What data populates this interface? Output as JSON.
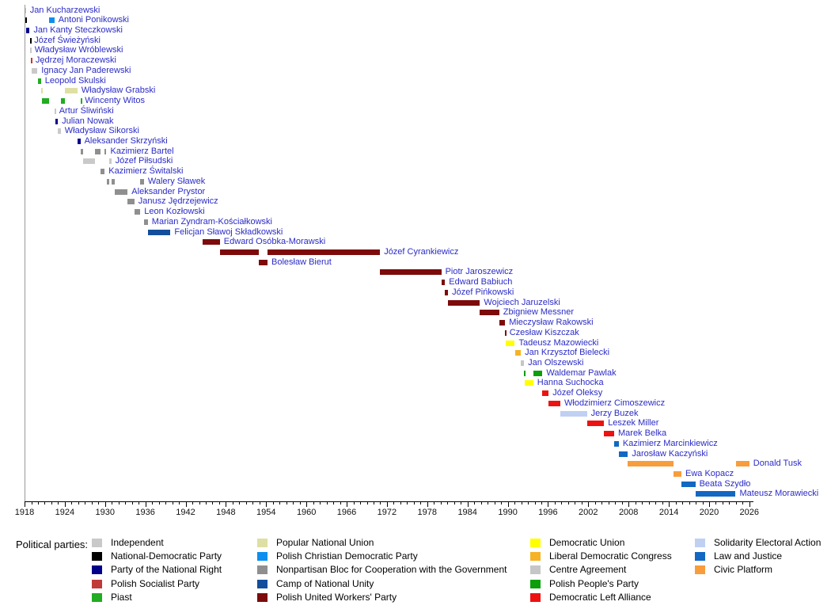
{
  "chart_data": {
    "type": "timeline",
    "title": "",
    "axis": {
      "start": 1918,
      "end": 2026,
      "major_tick_step": 6,
      "minor_tick_step": 1,
      "tick_labels": [
        1918,
        1924,
        1930,
        1936,
        1942,
        1948,
        1954,
        1960,
        1966,
        1972,
        1978,
        1984,
        1990,
        1996,
        2002,
        2008,
        2014,
        2020,
        2026
      ]
    },
    "parties": {
      "independent": {
        "label": "Independent",
        "color": "#C9C9C9"
      },
      "national_democratic": {
        "label": "National-Democratic Party",
        "color": "#000000"
      },
      "national_right": {
        "label": "Party of the National Right",
        "color": "#00008B"
      },
      "socialist": {
        "label": "Polish Socialist Party",
        "color": "#C03A3A"
      },
      "piast": {
        "label": "Piast",
        "color": "#22AC22"
      },
      "popular_national_union": {
        "label": "Popular National Union",
        "color": "#DEDFA3"
      },
      "christian_democratic": {
        "label": "Polish Christian Democratic Party",
        "color": "#0D8FEF"
      },
      "nonpartisan_bloc": {
        "label": "Nonpartisan Bloc for Cooperation with the Government",
        "color": "#8F8F8F"
      },
      "camp_national_unity": {
        "label": "Camp of National Unity",
        "color": "#134E9C"
      },
      "united_workers": {
        "label": "Polish United Workers' Party",
        "color": "#7D0B0B"
      },
      "democratic_union": {
        "label": "Democratic Union",
        "color": "#FFFF00"
      },
      "liberal_congress": {
        "label": "Liberal Democratic Congress",
        "color": "#F5B325"
      },
      "centre_agreement": {
        "label": "Centre Agreement",
        "color": "#C6C6C6"
      },
      "peoples_party": {
        "label": "Polish People's Party",
        "color": "#0C9E0C"
      },
      "left_alliance": {
        "label": "Democratic Left Alliance",
        "color": "#EE1111"
      },
      "solidarity": {
        "label": "Solidarity Electoral Action",
        "color": "#BFD0F2"
      },
      "law_justice": {
        "label": "Law and Justice",
        "color": "#1268C2"
      },
      "civic_platform": {
        "label": "Civic Platform",
        "color": "#F89D3C"
      }
    },
    "prime_ministers": [
      {
        "name": "Jan Kucharzewski",
        "party": "independent",
        "terms": [
          [
            1918.0,
            1918.2
          ]
        ]
      },
      {
        "name": "Antoni Ponikowski",
        "party": "christian_democratic",
        "terms": [
          [
            1918.1,
            1918.3,
            "national_democratic"
          ],
          [
            1921.7,
            1922.45
          ]
        ]
      },
      {
        "name": "Jan Kanty Steczkowski",
        "party": "national_right",
        "terms": [
          [
            1918.25,
            1918.75
          ]
        ]
      },
      {
        "name": "Józef Świeżyński",
        "party": "national_democratic",
        "terms": [
          [
            1918.78,
            1918.85
          ]
        ]
      },
      {
        "name": "Władysław Wróblewski",
        "party": "independent",
        "terms": [
          [
            1918.85,
            1918.92
          ]
        ]
      },
      {
        "name": "Jędrzej Moraczewski",
        "party": "socialist",
        "terms": [
          [
            1918.88,
            1919.05
          ]
        ]
      },
      {
        "name": "Ignacy Jan Paderewski",
        "party": "independent",
        "terms": [
          [
            1919.05,
            1919.92
          ]
        ]
      },
      {
        "name": "Leopold Skulski",
        "party": "piast",
        "terms": [
          [
            1919.95,
            1920.45
          ]
        ]
      },
      {
        "name": "Władysław Grabski",
        "party": "popular_national_union",
        "terms": [
          [
            1920.48,
            1920.58
          ],
          [
            1923.97,
            1925.88
          ]
        ]
      },
      {
        "name": "Wincenty Witos",
        "party": "piast",
        "terms": [
          [
            1920.58,
            1921.7
          ],
          [
            1923.4,
            1923.97
          ],
          [
            1926.33,
            1926.4
          ]
        ]
      },
      {
        "name": "Artur Śliwiński",
        "party": "independent",
        "terms": [
          [
            1922.5,
            1922.56
          ]
        ]
      },
      {
        "name": "Julian Nowak",
        "party": "national_right",
        "terms": [
          [
            1922.58,
            1922.97
          ]
        ]
      },
      {
        "name": "Władysław Sikorski",
        "party": "independent",
        "terms": [
          [
            1922.97,
            1923.4
          ]
        ]
      },
      {
        "name": "Aleksander Skrzyński",
        "party": "national_right",
        "terms": [
          [
            1925.88,
            1926.33
          ]
        ]
      },
      {
        "name": "Kazimierz Bartel",
        "party": "nonpartisan_bloc",
        "terms": [
          [
            1926.37,
            1926.73
          ],
          [
            1928.5,
            1929.3
          ],
          [
            1929.95,
            1930.2
          ]
        ]
      },
      {
        "name": "Józef Piłsudski",
        "party": "independent",
        "terms": [
          [
            1926.75,
            1928.5
          ],
          [
            1930.65,
            1930.92
          ]
        ]
      },
      {
        "name": "Kazimierz Świtalski",
        "party": "nonpartisan_bloc",
        "terms": [
          [
            1929.3,
            1929.95
          ]
        ]
      },
      {
        "name": "Walery Sławek",
        "party": "nonpartisan_bloc",
        "terms": [
          [
            1930.2,
            1930.62
          ],
          [
            1930.92,
            1931.4
          ],
          [
            1935.25,
            1935.8
          ]
        ]
      },
      {
        "name": "Aleksander Prystor",
        "party": "nonpartisan_bloc",
        "terms": [
          [
            1931.4,
            1933.37
          ]
        ]
      },
      {
        "name": "Janusz Jędrzejewicz",
        "party": "nonpartisan_bloc",
        "terms": [
          [
            1933.37,
            1934.37
          ]
        ]
      },
      {
        "name": "Leon Kozłowski",
        "party": "nonpartisan_bloc",
        "terms": [
          [
            1934.37,
            1935.25
          ]
        ]
      },
      {
        "name": "Marian Zyndram-Kościałkowski",
        "party": "nonpartisan_bloc",
        "terms": [
          [
            1935.8,
            1936.37
          ]
        ]
      },
      {
        "name": "Felicjan Sławoj Składkowski",
        "party": "camp_national_unity",
        "terms": [
          [
            1936.37,
            1939.75
          ]
        ]
      },
      {
        "name": "Edward Osóbka-Morawski",
        "party": "united_workers",
        "terms": [
          [
            1944.5,
            1947.1
          ]
        ]
      },
      {
        "name": "Józef Cyrankiewicz",
        "party": "united_workers",
        "terms": [
          [
            1947.1,
            1952.85
          ],
          [
            1954.2,
            1970.97
          ]
        ]
      },
      {
        "name": "Bolesław Bierut",
        "party": "united_workers",
        "terms": [
          [
            1952.85,
            1954.2
          ]
        ]
      },
      {
        "name": "Piotr Jaroszewicz",
        "party": "united_workers",
        "terms": [
          [
            1970.97,
            1980.1
          ]
        ]
      },
      {
        "name": "Edward Babiuch",
        "party": "united_workers",
        "terms": [
          [
            1980.1,
            1980.65
          ]
        ]
      },
      {
        "name": "Józef Pińkowski",
        "party": "united_workers",
        "terms": [
          [
            1980.65,
            1981.1
          ]
        ]
      },
      {
        "name": "Wojciech Jaruzelski",
        "party": "united_workers",
        "terms": [
          [
            1981.1,
            1985.85
          ]
        ]
      },
      {
        "name": "Zbigniew Messner",
        "party": "united_workers",
        "terms": [
          [
            1985.85,
            1988.73
          ]
        ]
      },
      {
        "name": "Mieczysław Rakowski",
        "party": "united_workers",
        "terms": [
          [
            1988.73,
            1989.6
          ]
        ]
      },
      {
        "name": "Czesław Kiszczak",
        "party": "united_workers",
        "terms": [
          [
            1989.6,
            1989.66
          ]
        ]
      },
      {
        "name": "Tadeusz Mazowiecki",
        "party": "democratic_union",
        "terms": [
          [
            1989.66,
            1991.05
          ]
        ]
      },
      {
        "name": "Jan Krzysztof Bielecki",
        "party": "liberal_congress",
        "terms": [
          [
            1991.05,
            1991.95
          ]
        ]
      },
      {
        "name": "Jan Olszewski",
        "party": "centre_agreement",
        "terms": [
          [
            1991.95,
            1992.42
          ]
        ]
      },
      {
        "name": "Waldemar Pawlak",
        "party": "peoples_party",
        "terms": [
          [
            1992.42,
            1992.52
          ],
          [
            1993.8,
            1995.17
          ]
        ]
      },
      {
        "name": "Hanna Suchocka",
        "party": "democratic_union",
        "terms": [
          [
            1992.52,
            1993.8
          ]
        ]
      },
      {
        "name": "Józef Oleksy",
        "party": "left_alliance",
        "terms": [
          [
            1995.17,
            1996.1
          ]
        ]
      },
      {
        "name": "Włodzimierz Cimoszewicz",
        "party": "left_alliance",
        "terms": [
          [
            1996.1,
            1997.83
          ]
        ]
      },
      {
        "name": "Jerzy Buzek",
        "party": "solidarity",
        "terms": [
          [
            1997.83,
            2001.8
          ]
        ]
      },
      {
        "name": "Leszek Miller",
        "party": "left_alliance",
        "terms": [
          [
            2001.8,
            2004.35
          ]
        ]
      },
      {
        "name": "Marek Belka",
        "party": "left_alliance",
        "terms": [
          [
            2004.35,
            2005.85
          ]
        ]
      },
      {
        "name": "Kazimierz Marcinkiewicz",
        "party": "law_justice",
        "terms": [
          [
            2005.85,
            2006.55
          ]
        ]
      },
      {
        "name": "Jarosław Kaczyński",
        "party": "law_justice",
        "terms": [
          [
            2006.55,
            2007.9
          ]
        ]
      },
      {
        "name": "Donald Tusk",
        "party": "civic_platform",
        "terms": [
          [
            2007.9,
            2014.7
          ],
          [
            2023.95,
            2026.0
          ]
        ]
      },
      {
        "name": "Ewa Kopacz",
        "party": "civic_platform",
        "terms": [
          [
            2014.7,
            2015.88
          ]
        ]
      },
      {
        "name": "Beata Szydło",
        "party": "law_justice",
        "terms": [
          [
            2015.88,
            2017.95
          ]
        ]
      },
      {
        "name": "Mateusz Morawiecki",
        "party": "law_justice",
        "terms": [
          [
            2017.95,
            2023.95
          ]
        ]
      }
    ]
  },
  "legend": {
    "title": "Political parties:",
    "columns": [
      [
        "independent",
        "national_democratic",
        "national_right",
        "socialist",
        "piast"
      ],
      [
        "popular_national_union",
        "christian_democratic",
        "nonpartisan_bloc",
        "camp_national_unity",
        "united_workers"
      ],
      [
        "democratic_union",
        "liberal_congress",
        "centre_agreement",
        "peoples_party",
        "left_alliance"
      ],
      [
        "solidarity",
        "law_justice",
        "civic_platform"
      ]
    ]
  }
}
